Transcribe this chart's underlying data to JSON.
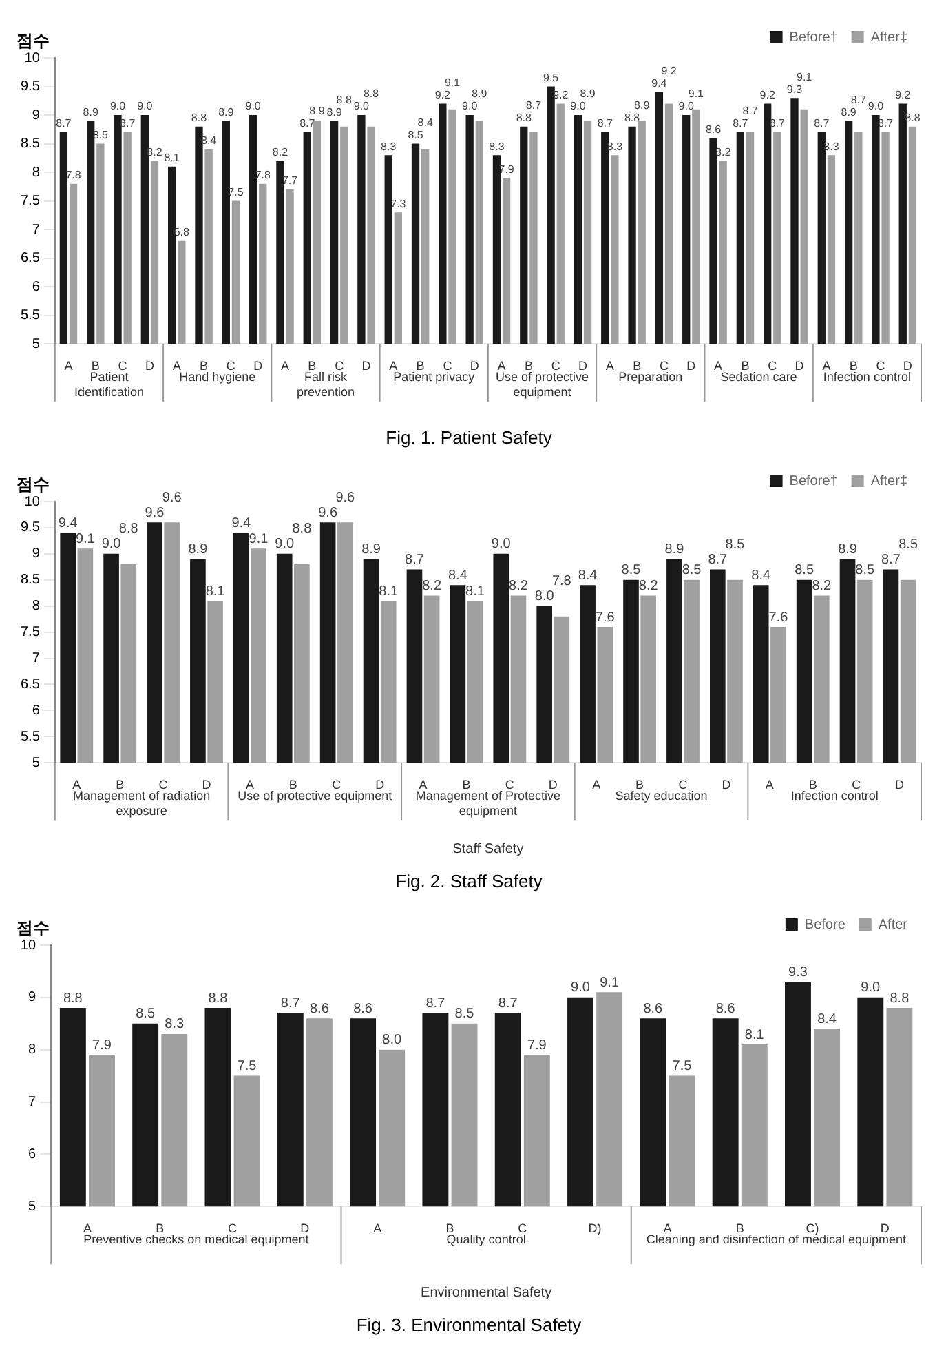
{
  "chart_data": [
    {
      "type": "bar",
      "title": "Fig. 1. Patient Safety",
      "ylabel": "점수",
      "categories": [
        "A",
        "B",
        "C",
        "D",
        "A",
        "B",
        "C",
        "D",
        "A",
        "B",
        "C",
        "D",
        "A",
        "B",
        "C",
        "D",
        "A",
        "B",
        "C",
        "D",
        "A",
        "B",
        "C",
        "D",
        "A",
        "B",
        "C",
        "D",
        "A",
        "B",
        "C",
        "D"
      ],
      "annotations": [
        "Patient Identification",
        "Hand hygiene",
        "Fall risk prevention",
        "Patient privacy",
        "Use of protective equipment",
        "Preparation",
        "Sedation care",
        "Infection control"
      ],
      "series": [
        {
          "name": "Before†",
          "color": "#1a1a1a",
          "values": [
            8.7,
            8.9,
            9.0,
            9.0,
            8.1,
            8.8,
            8.9,
            9.0,
            8.2,
            8.7,
            8.9,
            9.0,
            8.3,
            8.5,
            9.2,
            9.0,
            8.3,
            8.8,
            9.5,
            9.0,
            8.7,
            8.8,
            9.4,
            9.0,
            8.6,
            8.7,
            9.2,
            9.3,
            8.7,
            8.9,
            9.0,
            9.2
          ],
          "value_labels": [
            "8.7",
            "8.9",
            "9.0",
            "9.0",
            "8.1",
            "8.8",
            "8.9",
            "9.0",
            "8.2",
            "8.7",
            "8.9",
            "9.0",
            "8.3",
            "8.5",
            "9.2",
            "9.0",
            "8.3",
            "8.8",
            "9.5",
            "9.0",
            "8.7",
            "8.8",
            "9.4",
            "9.0",
            "8.6",
            "8.7",
            "9.2",
            "9.3",
            "8.7",
            "8.9",
            "9.0",
            "9.2"
          ]
        },
        {
          "name": "After‡",
          "color": "#a0a0a0",
          "values": [
            7.8,
            8.5,
            8.7,
            8.2,
            6.8,
            8.4,
            7.5,
            7.8,
            7.7,
            8.9,
            8.8,
            8.8,
            7.3,
            8.4,
            9.1,
            8.9,
            7.9,
            8.7,
            9.2,
            8.9,
            8.3,
            8.9,
            9.2,
            9.1,
            8.2,
            8.7,
            8.7,
            9.1,
            8.3,
            8.7,
            8.7,
            8.8
          ],
          "value_labels": [
            "7.8",
            "8.5",
            "8.7",
            "8.2",
            "6.8",
            "8.4",
            "7.5",
            "7.8",
            "7.7",
            "8.9",
            "8.8",
            "8.8",
            "7.3",
            "8.4",
            "9.1",
            "8.9",
            "7.9",
            "8.7",
            "9.2",
            "8.9",
            "8.3",
            "8.9",
            "9.2",
            "9.1",
            "8.2",
            "8.7",
            "8.7",
            "9.1",
            "8.3",
            "8.7",
            "8.7",
            "8.8"
          ]
        }
      ],
      "ylim": [
        5,
        10
      ],
      "yticks": [
        5,
        5.5,
        6,
        6.5,
        7,
        7.5,
        8,
        8.5,
        9,
        9.5,
        10
      ],
      "legend": "top right"
    },
    {
      "type": "bar",
      "title": "Fig. 2. Staff Safety",
      "ylabel": "점수",
      "xlabel": "Staff Safety",
      "categories": [
        "A",
        "B",
        "C",
        "D",
        "A",
        "B",
        "C",
        "D",
        "A",
        "B",
        "C",
        "D",
        "A",
        "B",
        "C",
        "D",
        "A",
        "B",
        "C",
        "D"
      ],
      "annotations": [
        "Management of radiation exposure",
        "Use of protective equipment",
        "Management of Protective equipment",
        "Safety education",
        "Infection control"
      ],
      "series": [
        {
          "name": "Before†",
          "color": "#1a1a1a",
          "values": [
            9.4,
            9.0,
            9.6,
            8.9,
            9.4,
            9.0,
            9.6,
            8.9,
            8.7,
            8.4,
            9.0,
            8.0,
            8.4,
            8.5,
            8.9,
            8.7,
            8.4,
            8.5,
            8.9,
            8.7
          ],
          "value_labels": [
            "9.4",
            "9.0",
            "9.6",
            "8.9",
            "9.4",
            "9.0",
            "9.6",
            "8.9",
            "8.7",
            "8.4",
            "9.0",
            "8.0",
            "8.4",
            "8.5",
            "8.9",
            "8.7",
            "8.4",
            "8.5",
            "8.9",
            "8.7"
          ]
        },
        {
          "name": "After‡",
          "color": "#a0a0a0",
          "values": [
            9.1,
            8.8,
            9.6,
            8.1,
            9.1,
            8.8,
            9.6,
            8.1,
            8.2,
            8.1,
            8.2,
            7.8,
            7.6,
            8.2,
            8.5,
            8.5,
            7.6,
            8.2,
            8.5,
            8.5
          ],
          "value_labels": [
            "9.1",
            "8.8",
            "9.6",
            "8.1",
            "9.1",
            "8.8",
            "9.6",
            "8.1",
            "8.2",
            "8.1",
            "8.2",
            "7.8",
            "7.6",
            "8.2",
            "8.5",
            "8.5",
            "7.6",
            "8.2",
            "8.5",
            "8.5"
          ]
        }
      ],
      "ylim": [
        5,
        10
      ],
      "yticks": [
        5,
        5.5,
        6,
        6.5,
        7,
        7.5,
        8,
        8.5,
        9,
        9.5,
        10
      ],
      "legend": "top right"
    },
    {
      "type": "bar",
      "title": "Fig. 3. Environmental Safety",
      "ylabel": "점수",
      "xlabel": "Environmental Safety",
      "categories": [
        "A",
        "B",
        "C",
        "D",
        "A",
        "B",
        "C",
        "D)",
        "A",
        "B",
        "C)",
        "D"
      ],
      "annotations": [
        "Preventive checks on medical equipment",
        "Quality control",
        "Cleaning and disinfection of medical equipment"
      ],
      "series": [
        {
          "name": "Before",
          "color": "#1a1a1a",
          "values": [
            8.8,
            8.5,
            8.8,
            8.7,
            8.6,
            8.7,
            8.7,
            9.0,
            8.6,
            8.6,
            9.3,
            9.0
          ],
          "value_labels": [
            "8.8",
            "8.5",
            "8.8",
            "8.7",
            "8.6",
            "8.7",
            "8.7",
            "9.0",
            "8.6",
            "8.6",
            "9.3",
            "9.0"
          ]
        },
        {
          "name": "After",
          "color": "#a0a0a0",
          "values": [
            7.9,
            8.3,
            7.5,
            8.6,
            8.0,
            8.5,
            7.9,
            9.1,
            7.5,
            8.1,
            8.4,
            8.8
          ],
          "value_labels": [
            "7.9",
            "8.3",
            "7.5",
            "8.6",
            "8.0",
            "8.5",
            "7.9",
            "9.1",
            "7.5",
            "8.1",
            "8.4",
            "8.8"
          ]
        }
      ],
      "ylim": [
        5,
        10
      ],
      "yticks": [
        5,
        6,
        7,
        8,
        9,
        10
      ],
      "legend": "top right"
    }
  ]
}
